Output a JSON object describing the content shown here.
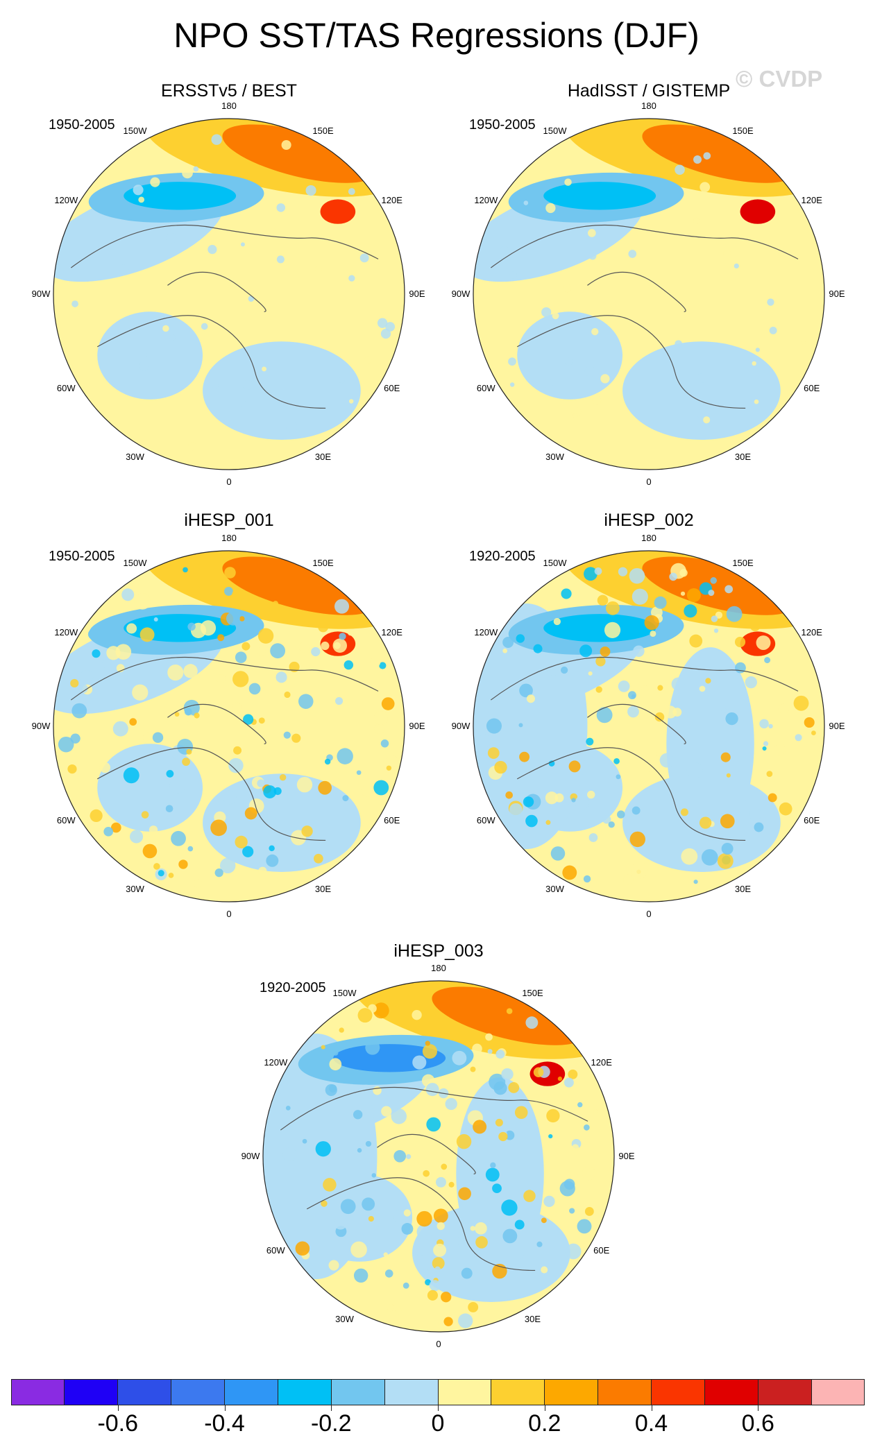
{
  "figure": {
    "title": "NPO SST/TAS Regressions (DJF)",
    "watermark": "© CVDP"
  },
  "chart_data": {
    "type": "heatmap",
    "projection": "north-polar-stereographic",
    "variable": "SST/TAS regression onto NPO",
    "season": "DJF",
    "longitude_labels": [
      "180",
      "150E",
      "120E",
      "90E",
      "60E",
      "30E",
      "0",
      "30W",
      "60W",
      "90W",
      "120W",
      "150W"
    ],
    "panels": [
      {
        "title": "ERSSTv5 / BEST",
        "period": "1950-2005",
        "north_pacific_warm": 0.35,
        "north_pacific_cold": -0.3,
        "kamchatka_peak": 0.45
      },
      {
        "title": "HadISST / GISTEMP",
        "period": "1950-2005",
        "north_pacific_warm": 0.35,
        "north_pacific_cold": -0.3,
        "kamchatka_peak": 0.55
      },
      {
        "title": "iHESP_001",
        "period": "1950-2005",
        "north_pacific_warm": 0.3,
        "north_pacific_cold": -0.3,
        "kamchatka_peak": 0.4
      },
      {
        "title": "iHESP_002",
        "period": "1920-2005",
        "north_pacific_warm": 0.3,
        "north_pacific_cold": -0.25,
        "kamchatka_peak": 0.45
      },
      {
        "title": "iHESP_003",
        "period": "1920-2005",
        "north_pacific_warm": 0.3,
        "north_pacific_cold": -0.35,
        "kamchatka_peak": 0.55
      }
    ],
    "colorbar": {
      "levels": [
        -0.7,
        -0.6,
        -0.5,
        -0.4,
        -0.3,
        -0.2,
        -0.1,
        0,
        0.1,
        0.2,
        0.3,
        0.4,
        0.5,
        0.6,
        0.7
      ],
      "tick_labels": [
        "-0.6",
        "-0.4",
        "-0.2",
        "0",
        "0.2",
        "0.4",
        "0.6"
      ],
      "tick_values": [
        -0.6,
        -0.4,
        -0.2,
        0,
        0.2,
        0.4,
        0.6
      ],
      "colors": [
        "#8a2be2",
        "#1f00f5",
        "#2e4fe8",
        "#3c79ef",
        "#2f96f5",
        "#00c0f5",
        "#72c6ef",
        "#b3def5",
        "#fff59f",
        "#fdd030",
        "#fda800",
        "#fb7b00",
        "#fa3500",
        "#e00000",
        "#cb2020",
        "#fcb4b4"
      ]
    }
  }
}
